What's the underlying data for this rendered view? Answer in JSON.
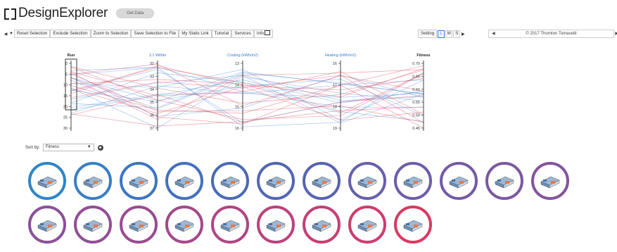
{
  "app": {
    "title": "DesignExplorer",
    "get_data_label": "Get Data"
  },
  "toolbar": {
    "buttons": [
      "Reset Selection",
      "Exclude Selection",
      "Zoom to Selection",
      "Save Selection to File",
      "My Static Link",
      "Tutorial",
      "Services",
      "Info"
    ]
  },
  "setting": {
    "label": "Setting",
    "sizes": [
      "L",
      "M",
      "S"
    ],
    "active": "L"
  },
  "copyright": "© 2017 Thornton Tomasetti",
  "sort": {
    "label": "Sort by:",
    "value": "Fitness"
  },
  "parallel_coords": {
    "axes": [
      {
        "title": "Run",
        "ticks": [
          "0",
          "5",
          "10",
          "15",
          "20",
          "25",
          "30"
        ]
      },
      {
        "title": "3.1 Within",
        "ticks": [
          "32",
          "33",
          "34",
          "35",
          "36",
          "37"
        ]
      },
      {
        "title": "Cooling (kWh/m2)",
        "ticks": [
          "13",
          "14",
          "15",
          "16"
        ]
      },
      {
        "title": "Heating (kWh/m2)",
        "ticks": [
          "16",
          "17",
          "18",
          "19"
        ]
      },
      {
        "title": "Fitness",
        "ticks": [
          "0.70",
          "0.65",
          "0.60",
          "0.55",
          "0.50",
          "0.45"
        ]
      }
    ]
  },
  "thumbnail_colors": [
    "#2e86c9",
    "#3b7fc4",
    "#3d76bf",
    "#4470bc",
    "#4a6ab8",
    "#5166b4",
    "#5963b1",
    "#6660ae",
    "#6d5daa",
    "#745aa6",
    "#7b57a2",
    "#84549e",
    "#8a519a",
    "#914e96",
    "#9a4b90",
    "#a4488a",
    "#b04584",
    "#bb427d",
    "#c43f74",
    "#cf3c6b",
    "#d83a62"
  ],
  "colors": {
    "blue": "#2e86c9",
    "red": "#d83a62",
    "axis_title": "#2b7bd6"
  }
}
